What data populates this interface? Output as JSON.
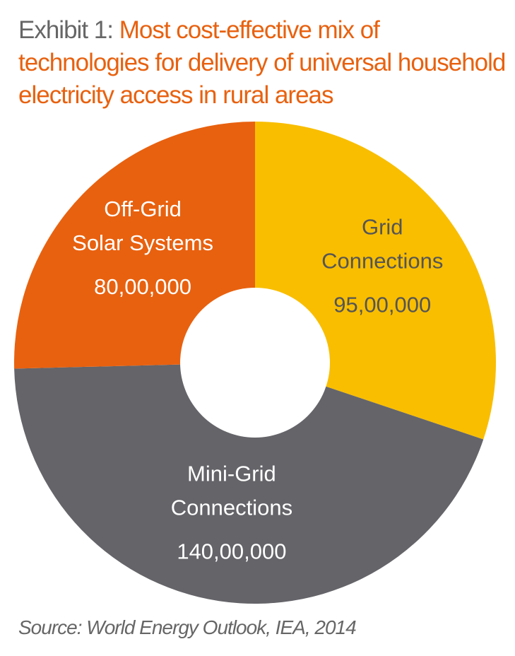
{
  "title": {
    "prefix": "Exhibit 1: ",
    "text": "Most cost-effective mix of technologies for delivery of universal household electricity access in rural areas"
  },
  "source": "Source: World Energy Outlook, IEA, 2014",
  "colors": {
    "grid": "#f9be00",
    "mini_grid": "#646469",
    "off_grid": "#e8610f",
    "title_accent": "#e8610f",
    "text_gray": "#666666"
  },
  "chart_data": {
    "type": "pie",
    "donut": true,
    "title": "Most cost-effective mix of technologies for delivery of universal household electricity access in rural areas",
    "slices": [
      {
        "name_lines": [
          "Grid",
          "Connections"
        ],
        "value": 9500000,
        "value_label": "95,00,000",
        "color": "#f9be00",
        "label_color": "#555555"
      },
      {
        "name_lines": [
          "Mini-Grid",
          "Connections"
        ],
        "value": 14000000,
        "value_label": "140,00,000",
        "color": "#646469",
        "label_color": "#ffffff"
      },
      {
        "name_lines": [
          "Off-Grid",
          "Solar Systems"
        ],
        "value": 8000000,
        "value_label": "80,00,000",
        "color": "#e8610f",
        "label_color": "#ffffff"
      }
    ]
  }
}
